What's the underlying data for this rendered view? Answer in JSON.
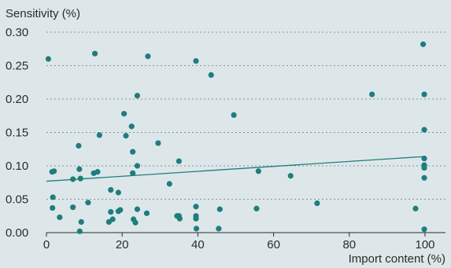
{
  "chart_data": {
    "type": "scatter",
    "title": "",
    "ylabel": "Sensitivity (%)",
    "xlabel": "Import content (%)",
    "xlim": [
      0,
      100
    ],
    "ylim": [
      0,
      0.3
    ],
    "x_ticks": [
      "0",
      "20",
      "40",
      "60",
      "80",
      "100"
    ],
    "y_ticks": [
      "0.00",
      "0.05",
      "0.10",
      "0.15",
      "0.20",
      "0.25",
      "0.30"
    ],
    "grid": "horizontal dotted",
    "colors": {
      "points": "#1f7d7d",
      "trend": "#1f7d7d",
      "background": "#dde7e9"
    },
    "points": [
      [
        0.5,
        0.26
      ],
      [
        1.5,
        0.091
      ],
      [
        2.0,
        0.092
      ],
      [
        1.7,
        0.053
      ],
      [
        1.6,
        0.037
      ],
      [
        3.5,
        0.023
      ],
      [
        7.0,
        0.08
      ],
      [
        7.0,
        0.038
      ],
      [
        8.5,
        0.13
      ],
      [
        8.7,
        0.095
      ],
      [
        9.0,
        0.081
      ],
      [
        9.2,
        0.016
      ],
      [
        8.8,
        0.002
      ],
      [
        11.0,
        0.045
      ],
      [
        12.5,
        0.089
      ],
      [
        12.8,
        0.268
      ],
      [
        13.5,
        0.091
      ],
      [
        14.0,
        0.146
      ],
      [
        16.5,
        0.016
      ],
      [
        17.0,
        0.031
      ],
      [
        17.0,
        0.064
      ],
      [
        17.5,
        0.02
      ],
      [
        19.0,
        0.06
      ],
      [
        19.0,
        0.032
      ],
      [
        19.5,
        0.034
      ],
      [
        20.5,
        0.178
      ],
      [
        21.0,
        0.145
      ],
      [
        22.5,
        0.159
      ],
      [
        22.8,
        0.121
      ],
      [
        22.8,
        0.089
      ],
      [
        23.0,
        0.02
      ],
      [
        23.5,
        0.015
      ],
      [
        24.0,
        0.205
      ],
      [
        24.0,
        0.1
      ],
      [
        24.0,
        0.035
      ],
      [
        26.5,
        0.029
      ],
      [
        26.8,
        0.264
      ],
      [
        29.5,
        0.134
      ],
      [
        32.5,
        0.073
      ],
      [
        34.5,
        0.025
      ],
      [
        35.0,
        0.107
      ],
      [
        35.0,
        0.025
      ],
      [
        35.2,
        0.021
      ],
      [
        39.5,
        0.257
      ],
      [
        39.5,
        0.039
      ],
      [
        39.5,
        0.025
      ],
      [
        39.5,
        0.021
      ],
      [
        39.6,
        0.006
      ],
      [
        43.5,
        0.236
      ],
      [
        45.5,
        0.006
      ],
      [
        45.8,
        0.035
      ],
      [
        49.5,
        0.176
      ],
      [
        55.5,
        0.036
      ],
      [
        56.0,
        0.092
      ],
      [
        64.5,
        0.085
      ],
      [
        71.5,
        0.044
      ],
      [
        86.0,
        0.207
      ],
      [
        97.5,
        0.036
      ],
      [
        99.5,
        0.282
      ],
      [
        99.8,
        0.207
      ],
      [
        99.8,
        0.154
      ],
      [
        99.8,
        0.111
      ],
      [
        99.8,
        0.101
      ],
      [
        99.8,
        0.097
      ],
      [
        99.8,
        0.082
      ],
      [
        99.8,
        0.005
      ]
    ],
    "trendline": [
      [
        0,
        0.077
      ],
      [
        100,
        0.114
      ]
    ]
  }
}
